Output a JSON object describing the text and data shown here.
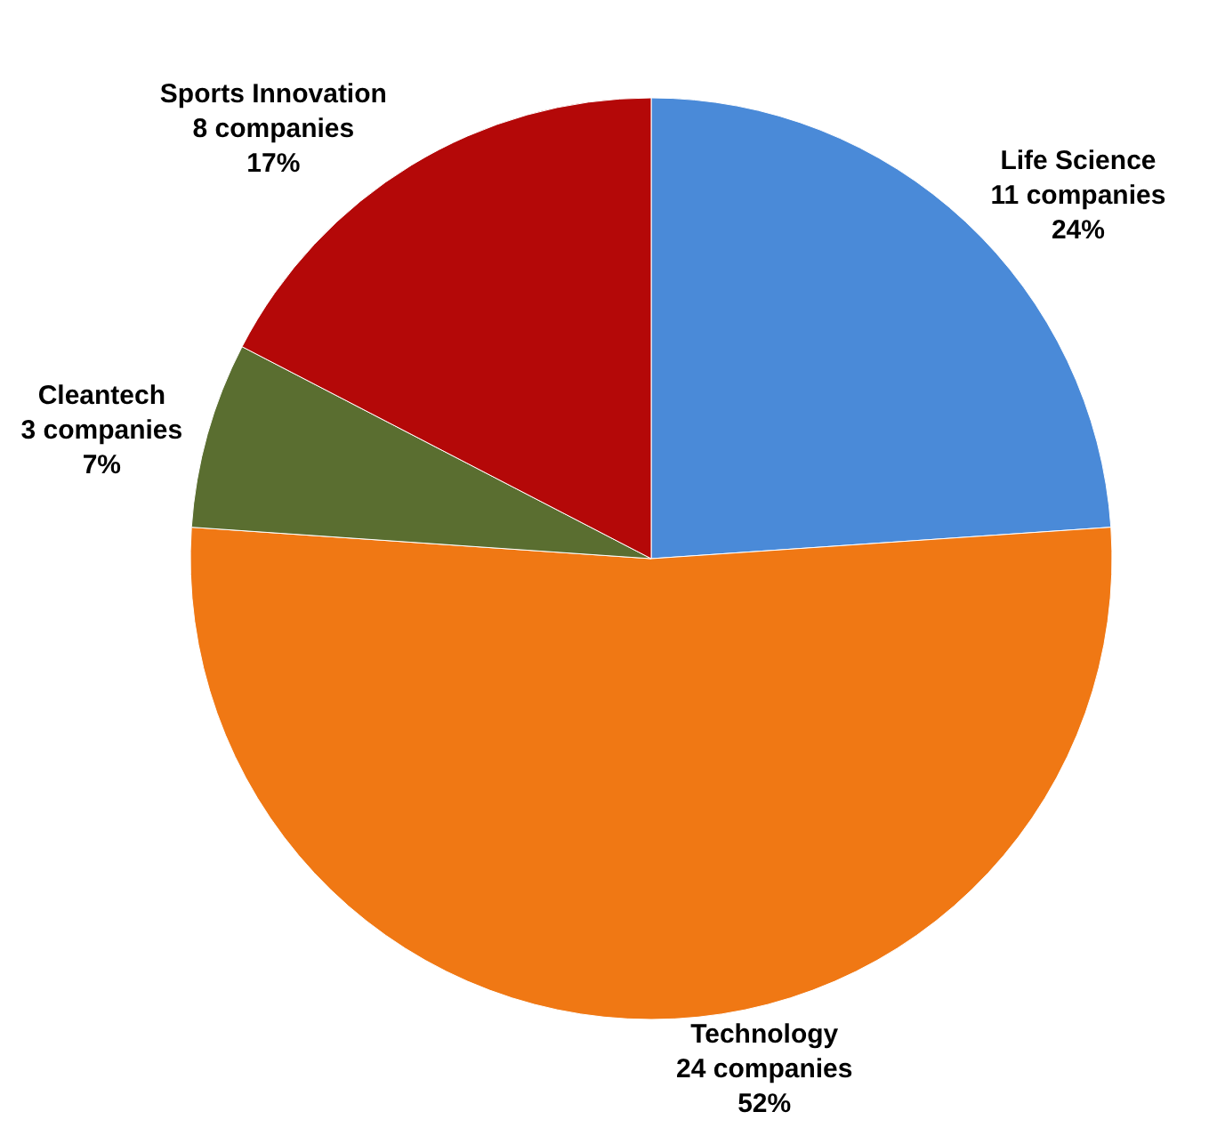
{
  "chart_data": {
    "type": "pie",
    "categories": [
      "Life Science",
      "Technology",
      "Cleantech",
      "Sports Innovation"
    ],
    "values": [
      11,
      24,
      3,
      8
    ],
    "value_labels": [
      "11 companies\n24%",
      "24 companies\n52%",
      "3 companies\n7%",
      "8 companies\n17%"
    ],
    "colors": [
      "#4a8ad8",
      "#f07814",
      "#5a6e30",
      "#b40808"
    ],
    "legend": false
  }
}
